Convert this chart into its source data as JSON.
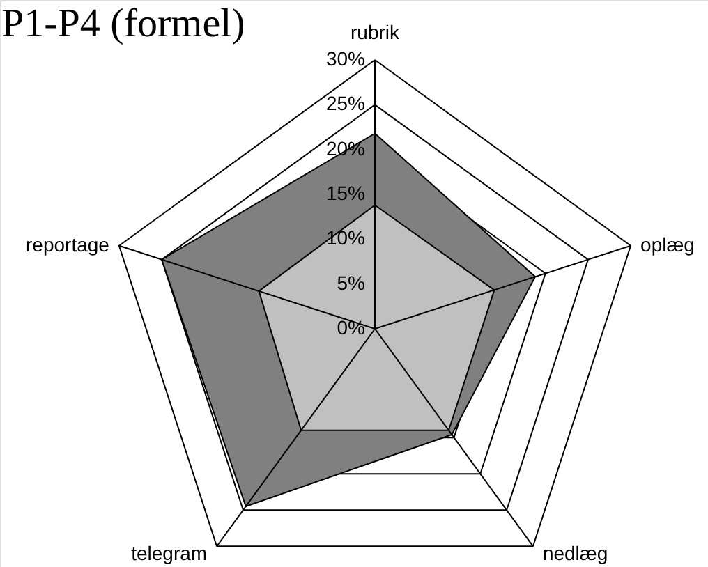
{
  "chart_data": {
    "type": "radar",
    "title": "P1-P4 (formel)",
    "categories": [
      "rubrik",
      "oplæg",
      "nedlæg",
      "telegram",
      "reportage"
    ],
    "series": [
      {
        "color": "#808080",
        "values": [
          21.8,
          18.8,
          14.6,
          24.5,
          25.0
        ]
      },
      {
        "color": "#c0c0c0",
        "values": [
          13.8,
          14.0,
          14.0,
          14.0,
          13.6
        ]
      }
    ],
    "ylim": [
      0,
      30
    ],
    "yticks": [
      {
        "value": 0,
        "label": "0%"
      },
      {
        "value": 5,
        "label": "5%"
      },
      {
        "value": 10,
        "label": "10%"
      },
      {
        "value": 15,
        "label": "15%"
      },
      {
        "value": 20,
        "label": "20%"
      },
      {
        "value": 25,
        "label": "25%"
      },
      {
        "value": 30,
        "label": "30%"
      }
    ],
    "grid": true
  }
}
